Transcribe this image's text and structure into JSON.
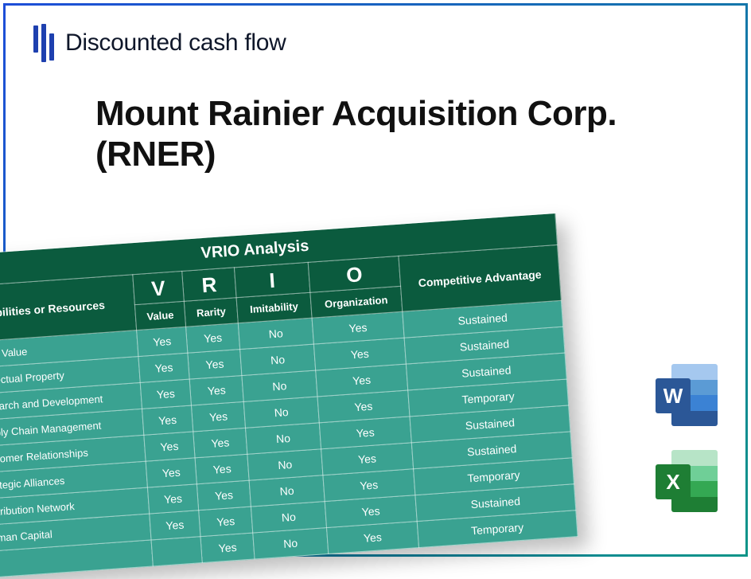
{
  "brand": {
    "text": "Discounted cash flow"
  },
  "title": "Mount Rainier Acquisition Corp. (RNER)",
  "vrio": {
    "title": "VRIO Analysis",
    "cap_header": "Capabilities or Resources",
    "letters": [
      "V",
      "R",
      "I",
      "O"
    ],
    "sub_labels": [
      "Value",
      "Rarity",
      "Imitability",
      "Organization"
    ],
    "adv_header": "Competitive Advantage",
    "colors": {
      "header_bg": "#0b5b3e",
      "body_bg": "#3aa291",
      "border": "rgba(255,255,255,0.5)",
      "text": "#ffffff"
    },
    "rows": [
      {
        "label": "Brand Value",
        "v": "Yes",
        "r": "Yes",
        "i": "No",
        "o": "Yes",
        "adv": "Sustained"
      },
      {
        "label": "Intellectual Property",
        "v": "Yes",
        "r": "Yes",
        "i": "No",
        "o": "Yes",
        "adv": "Sustained"
      },
      {
        "label": "Research and Development",
        "v": "Yes",
        "r": "Yes",
        "i": "No",
        "o": "Yes",
        "adv": "Sustained"
      },
      {
        "label": "Supply Chain Management",
        "v": "Yes",
        "r": "Yes",
        "i": "No",
        "o": "Yes",
        "adv": "Temporary"
      },
      {
        "label": "Customer Relationships",
        "v": "Yes",
        "r": "Yes",
        "i": "No",
        "o": "Yes",
        "adv": "Sustained"
      },
      {
        "label": "Strategic Alliances",
        "v": "Yes",
        "r": "Yes",
        "i": "No",
        "o": "Yes",
        "adv": "Sustained"
      },
      {
        "label": "Distribution Network",
        "v": "Yes",
        "r": "Yes",
        "i": "No",
        "o": "Yes",
        "adv": "Temporary"
      },
      {
        "label": "Human Capital",
        "v": "Yes",
        "r": "Yes",
        "i": "No",
        "o": "Yes",
        "adv": "Sustained"
      },
      {
        "label": "",
        "v": "",
        "r": "Yes",
        "i": "No",
        "o": "Yes",
        "adv": "Temporary"
      }
    ]
  },
  "icons": {
    "word": {
      "letter": "W"
    },
    "excel": {
      "letter": "X"
    }
  }
}
